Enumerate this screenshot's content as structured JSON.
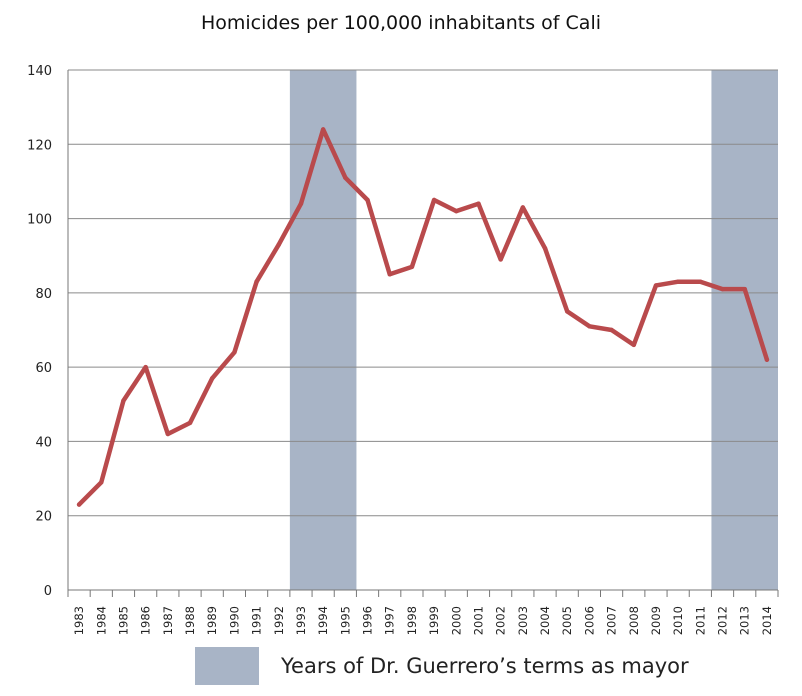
{
  "chart_data": {
    "type": "line",
    "title": "Homicides per 100,000 inhabitants of Cali",
    "xlabel": "",
    "ylabel": "",
    "categories": [
      "1983",
      "1984",
      "1985",
      "1986",
      "1987",
      "1988",
      "1989",
      "1990",
      "1991",
      "1992",
      "1993",
      "1994",
      "1995",
      "1996",
      "1997",
      "1998",
      "1999",
      "2000",
      "2001",
      "2002",
      "2003",
      "2004",
      "2005",
      "2006",
      "2007",
      "2008",
      "2009",
      "2010",
      "2011",
      "2012",
      "2013",
      "2014"
    ],
    "series": [
      {
        "values": [
          23,
          29,
          51,
          60,
          42,
          45,
          57,
          64,
          83,
          93,
          104,
          124,
          111,
          105,
          85,
          87,
          105,
          102,
          104,
          89,
          103,
          92,
          75,
          71,
          70,
          66,
          82,
          83,
          83,
          81,
          81,
          62
        ]
      }
    ],
    "ylim": [
      0,
      140
    ],
    "yticks": [
      "0",
      "20",
      "40",
      "60",
      "80",
      "100",
      "120",
      "140"
    ],
    "grid": true,
    "highlight_ranges": [
      {
        "from": "1993",
        "to": "1995"
      },
      {
        "from": "2012",
        "to": "2014"
      }
    ],
    "legend": {
      "label": "Years of Dr. Guerrero’s terms as mayor",
      "position": "bottom"
    },
    "colors": {
      "line": "#b94a4c",
      "highlight": "#a8b4c6",
      "grid": "#8a8a8a",
      "axis": "#777777"
    }
  }
}
